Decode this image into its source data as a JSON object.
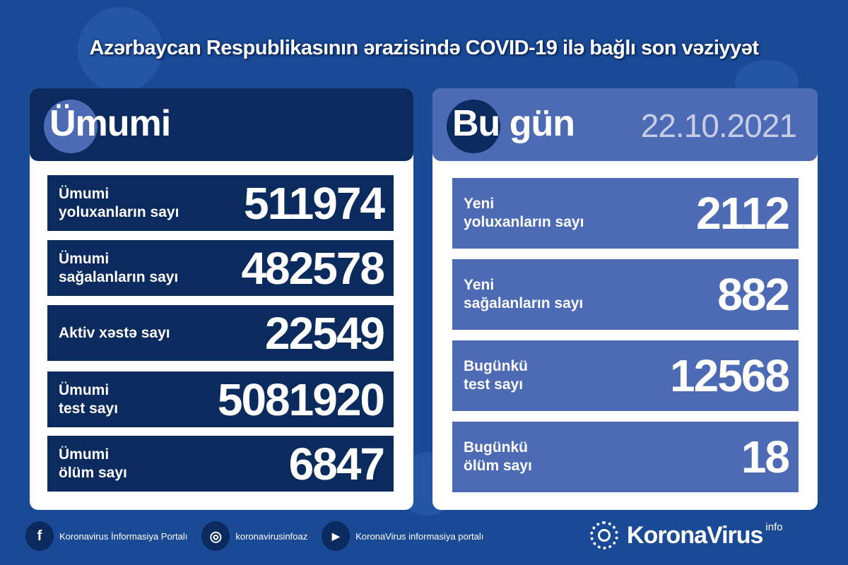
{
  "title": "Azərbaycan Respublikasının ərazisində COVID-19 ilə bağlı son vəziyyət",
  "colors": {
    "background": "#1a4a96",
    "navy": "#0b2a5e",
    "today_blue": "#4d6bb5",
    "date": "#c7cde6"
  },
  "total": {
    "heading": "Ümumi",
    "rows": [
      {
        "label1": "Ümumi",
        "label2": "yoluxanların sayı",
        "value": "511974"
      },
      {
        "label1": "Ümumi",
        "label2": "sağalanların sayı",
        "value": "482578"
      },
      {
        "label1": "Aktiv xəstə sayı",
        "label2": "",
        "value": "22549"
      },
      {
        "label1": "Ümumi",
        "label2": "test sayı",
        "value": "5081920"
      },
      {
        "label1": "Ümumi",
        "label2": "ölüm sayı",
        "value": "6847"
      }
    ]
  },
  "today": {
    "heading": "Bu gün",
    "date": "22.10.2021",
    "rows": [
      {
        "label1": "Yeni",
        "label2": "yoluxanların sayı",
        "value": "2112"
      },
      {
        "label1": "Yeni",
        "label2": "sağalanların sayı",
        "value": "882"
      },
      {
        "label1": "Bugünkü",
        "label2": "test sayı",
        "value": "12568"
      },
      {
        "label1": "Bugünkü",
        "label2": "ölüm sayı",
        "value": "18"
      }
    ]
  },
  "footer": {
    "facebook": {
      "icon": "facebook-icon",
      "glyph": "f",
      "label": "Koronavirus İnformasiya Portalı"
    },
    "instagram": {
      "icon": "instagram-icon",
      "glyph": "◎",
      "label": "koronavirusinfoaz"
    },
    "youtube": {
      "icon": "youtube-icon",
      "glyph": "▶",
      "label": "KoronaVirus informasiya portalı"
    },
    "brand": "KoronaVirus",
    "brand_sup": "info"
  }
}
